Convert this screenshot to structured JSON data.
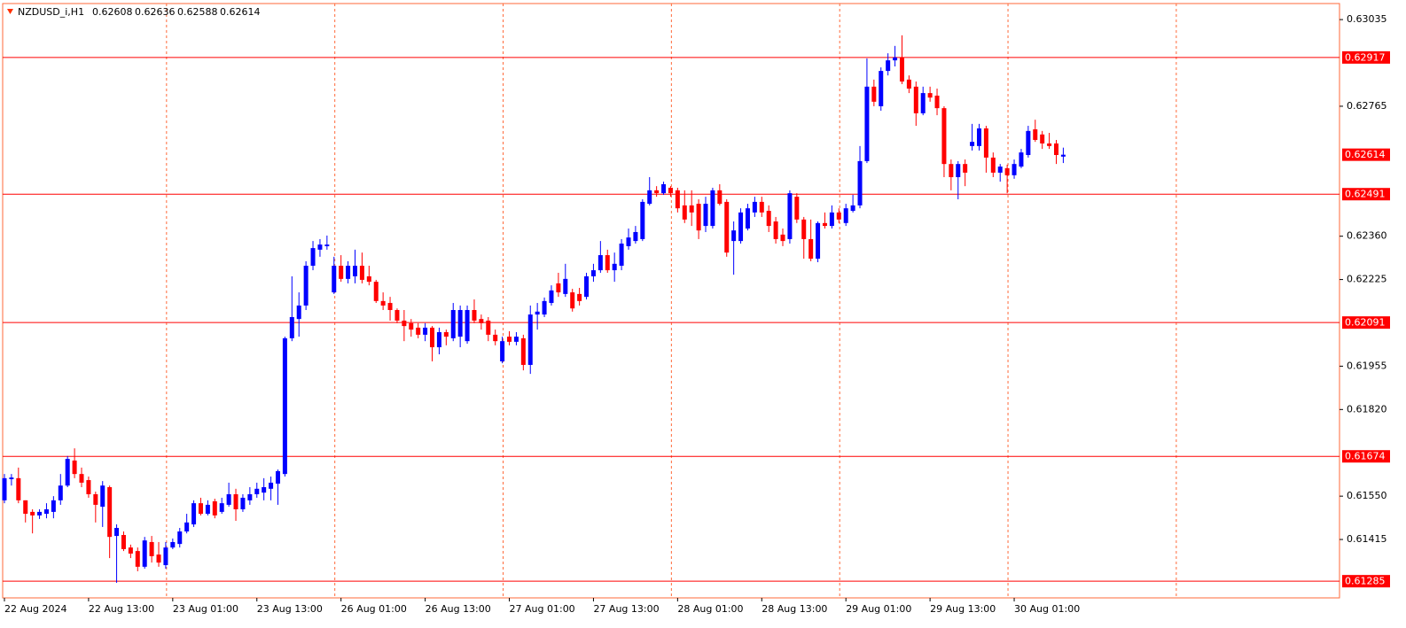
{
  "chart_data": {
    "type": "candlestick",
    "title": "NZDUSD_i,H1",
    "categories": [
      "22 Aug 2024",
      null,
      null,
      null,
      null,
      null,
      null,
      null,
      null,
      null,
      null,
      null,
      "22 Aug 13:00",
      null,
      null,
      null,
      null,
      null,
      null,
      null,
      null,
      null,
      null,
      null,
      "23 Aug 01:00",
      null,
      null,
      null,
      null,
      null,
      null,
      null,
      null,
      null,
      null,
      null,
      "23 Aug 13:00",
      null,
      null,
      null,
      null,
      null,
      null,
      null,
      null,
      null,
      null,
      null,
      "26 Aug 01:00",
      null,
      null,
      null,
      null,
      null,
      null,
      null,
      null,
      null,
      null,
      null,
      "26 Aug 13:00",
      null,
      null,
      null,
      null,
      null,
      null,
      null,
      null,
      null,
      null,
      null,
      "27 Aug 01:00",
      null,
      null,
      null,
      null,
      null,
      null,
      null,
      null,
      null,
      null,
      null,
      "27 Aug 13:00",
      null,
      null,
      null,
      null,
      null,
      null,
      null,
      null,
      null,
      null,
      null,
      "28 Aug 01:00",
      null,
      null,
      null,
      null,
      null,
      null,
      null,
      null,
      null,
      null,
      null,
      "28 Aug 13:00",
      null,
      null,
      null,
      null,
      null,
      null,
      null,
      null,
      null,
      null,
      null,
      "29 Aug 01:00",
      null,
      null,
      null,
      null,
      null,
      null,
      null,
      null,
      null,
      null,
      null,
      "29 Aug 13:00",
      null,
      null,
      null,
      null,
      null,
      null,
      null,
      null,
      null,
      null,
      null,
      "30 Aug 01:00",
      null,
      null,
      null,
      null,
      null,
      null,
      null
    ],
    "open": [
      0.61537,
      0.61603,
      0.61606,
      0.61537,
      0.61501,
      0.6149,
      0.61495,
      0.61501,
      0.61537,
      0.61583,
      0.61661,
      0.61619,
      0.616,
      0.61556,
      0.61517,
      0.61578,
      0.61426,
      0.61429,
      0.6139,
      0.61379,
      0.6133,
      0.61407,
      0.61368,
      0.61335,
      0.6139,
      0.61401,
      0.6144,
      0.61462,
      0.61528,
      0.61495,
      0.61534,
      0.61501,
      0.61523,
      0.61556,
      0.61509,
      0.61537,
      0.61556,
      0.61561,
      0.61573,
      0.61589,
      0.61619,
      0.62042,
      0.62102,
      0.62144,
      0.62268,
      0.62318,
      0.62329,
      0.62185,
      0.62268,
      0.62227,
      0.62235,
      0.62268,
      0.62235,
      0.62218,
      0.62158,
      0.62152,
      0.6213,
      0.62097,
      0.62089,
      0.62075,
      0.62053,
      0.62075,
      0.62014,
      0.62061,
      0.62042,
      0.62047,
      0.62033,
      0.6213,
      0.62102,
      0.62097,
      0.62053,
      0.6197,
      0.62047,
      0.62031,
      0.62042,
      0.61959,
      0.62116,
      0.62116,
      0.62152,
      0.62213,
      0.6218,
      0.62185,
      0.6218,
      0.62171,
      0.62235,
      0.62254,
      0.62301,
      0.62254,
      0.62268,
      0.62329,
      0.62345,
      0.62351,
      0.62461,
      0.62503,
      0.62494,
      0.62511,
      0.62503,
      0.62456,
      0.62456,
      0.62461,
      0.62392,
      0.62392,
      0.62503,
      0.62467,
      0.62345,
      0.62345,
      0.62384,
      0.62434,
      0.62467,
      0.62439,
      0.62406,
      0.62365,
      0.62351,
      0.62483,
      0.62412,
      0.62351,
      0.6229,
      0.62401,
      0.62392,
      0.62434,
      0.62401,
      0.62439,
      0.62456,
      0.62594,
      0.62826,
      0.62765,
      0.62875,
      0.62908,
      0.62917,
      0.62848,
      0.62826,
      0.62743,
      0.62806,
      0.62798,
      0.62759,
      0.62585,
      0.62544,
      0.62585,
      0.62641,
      0.62641,
      0.62696,
      0.62605,
      0.62558,
      0.62572,
      0.6255,
      0.62577,
      0.62613,
      0.62693,
      0.62677,
      0.62649,
      0.62649,
      0.62608
    ],
    "high": [
      0.61619,
      0.61619,
      0.61639,
      0.61537,
      0.61509,
      0.61509,
      0.61528,
      0.6155,
      0.61619,
      0.61675,
      0.61699,
      0.61639,
      0.61611,
      0.61564,
      0.61597,
      0.61583,
      0.61462,
      0.6144,
      0.61399,
      0.6139,
      0.61423,
      0.61426,
      0.61407,
      0.61407,
      0.61418,
      0.61451,
      0.61495,
      0.61537,
      0.61545,
      0.61537,
      0.61542,
      0.61545,
      0.61592,
      0.61573,
      0.61556,
      0.61578,
      0.61592,
      0.61606,
      0.61611,
      0.61633,
      0.62047,
      0.62235,
      0.62185,
      0.62282,
      0.62345,
      0.62351,
      0.62362,
      0.62296,
      0.62301,
      0.62282,
      0.62318,
      0.62309,
      0.62268,
      0.62224,
      0.62185,
      0.62171,
      0.62135,
      0.6213,
      0.62102,
      0.62089,
      0.62089,
      0.6208,
      0.62075,
      0.62069,
      0.62152,
      0.62144,
      0.62144,
      0.62163,
      0.62116,
      0.62108,
      0.62069,
      0.62047,
      0.62064,
      0.62061,
      0.62053,
      0.62144,
      0.62152,
      0.62169,
      0.62207,
      0.62246,
      0.62274,
      0.62196,
      0.62199,
      0.62246,
      0.62274,
      0.62345,
      0.62318,
      0.62309,
      0.62351,
      0.62384,
      0.62392,
      0.62475,
      0.62544,
      0.62516,
      0.6253,
      0.62516,
      0.62511,
      0.62503,
      0.62503,
      0.62475,
      0.62483,
      0.62511,
      0.62522,
      0.62475,
      0.62406,
      0.62447,
      0.62461,
      0.62483,
      0.62483,
      0.62456,
      0.6242,
      0.62384,
      0.62503,
      0.62494,
      0.6242,
      0.62412,
      0.62406,
      0.62434,
      0.62456,
      0.62447,
      0.62461,
      0.62489,
      0.62641,
      0.62914,
      0.62848,
      0.62886,
      0.6293,
      0.62953,
      0.62986,
      0.62861,
      0.62842,
      0.62826,
      0.62826,
      0.6282,
      0.62765,
      0.62599,
      0.62594,
      0.62599,
      0.6271,
      0.6271,
      0.62704,
      0.62621,
      0.62585,
      0.62583,
      0.62599,
      0.62632,
      0.62704,
      0.62723,
      0.62688,
      0.62682,
      0.6266,
      0.62636
    ],
    "low": [
      0.61528,
      0.61583,
      0.61528,
      0.61468,
      0.61434,
      0.61479,
      0.61481,
      0.61481,
      0.61523,
      0.61578,
      0.61606,
      0.61578,
      0.61545,
      0.61468,
      0.61454,
      0.61357,
      0.6128,
      0.61379,
      0.61357,
      0.61316,
      0.61324,
      0.61343,
      0.6133,
      0.61324,
      0.61385,
      0.6139,
      0.61434,
      0.61454,
      0.6149,
      0.6149,
      0.61481,
      0.61495,
      0.61517,
      0.61473,
      0.61501,
      0.61523,
      0.61545,
      0.61537,
      0.61537,
      0.61523,
      0.61611,
      0.62033,
      0.62047,
      0.6213,
      0.62254,
      0.62296,
      0.62318,
      0.6218,
      0.62218,
      0.62213,
      0.62213,
      0.62213,
      0.62207,
      0.62152,
      0.6213,
      0.62097,
      0.62089,
      0.62033,
      0.62047,
      0.62042,
      0.62033,
      0.6197,
      0.61992,
      0.6202,
      0.62033,
      0.62014,
      0.62025,
      0.62089,
      0.62069,
      0.62033,
      0.6202,
      0.61964,
      0.6202,
      0.6202,
      0.61942,
      0.61931,
      0.62069,
      0.62108,
      0.62144,
      0.62171,
      0.62171,
      0.62125,
      0.62144,
      0.62163,
      0.62218,
      0.62246,
      0.62246,
      0.62218,
      0.62254,
      0.62318,
      0.62337,
      0.62345,
      0.62456,
      0.62483,
      0.62489,
      0.62483,
      0.62434,
      0.62401,
      0.62392,
      0.62351,
      0.62373,
      0.62384,
      0.62456,
      0.62296,
      0.6224,
      0.62337,
      0.62378,
      0.6242,
      0.6242,
      0.62373,
      0.62337,
      0.62329,
      0.62337,
      0.62401,
      0.6229,
      0.62282,
      0.62279,
      0.62384,
      0.62384,
      0.62401,
      0.62392,
      0.62434,
      0.62447,
      0.62588,
      0.62765,
      0.62751,
      0.62861,
      0.62889,
      0.62834,
      0.62806,
      0.62704,
      0.62737,
      0.62779,
      0.62737,
      0.62544,
      0.62503,
      0.62475,
      0.62516,
      0.62627,
      0.62627,
      0.62558,
      0.62544,
      0.6253,
      0.62494,
      0.62539,
      0.62572,
      0.62605,
      0.62654,
      0.62632,
      0.62632,
      0.62585,
      0.62588
    ],
    "close": [
      0.61606,
      0.61608,
      0.61537,
      0.61495,
      0.6149,
      0.61501,
      0.61509,
      0.61537,
      0.61583,
      0.61666,
      0.61619,
      0.61592,
      0.61556,
      0.61523,
      0.61583,
      0.61423,
      0.61451,
      0.61385,
      0.61371,
      0.6133,
      0.61412,
      0.61363,
      0.61343,
      0.6139,
      0.61407,
      0.6144,
      0.61468,
      0.61528,
      0.61495,
      0.61523,
      0.6149,
      0.61528,
      0.61556,
      0.61509,
      0.61545,
      0.61556,
      0.61573,
      0.61578,
      0.61592,
      0.61628,
      0.62042,
      0.62108,
      0.62144,
      0.62268,
      0.62323,
      0.62334,
      0.62334,
      0.62268,
      0.62227,
      0.62268,
      0.62268,
      0.62224,
      0.62218,
      0.62158,
      0.62144,
      0.6213,
      0.62097,
      0.6208,
      0.62069,
      0.62053,
      0.62075,
      0.62014,
      0.62061,
      0.62047,
      0.6213,
      0.6213,
      0.6213,
      0.62097,
      0.62089,
      0.62053,
      0.62033,
      0.62033,
      0.62031,
      0.62047,
      0.61959,
      0.62116,
      0.62125,
      0.62158,
      0.62191,
      0.62185,
      0.62227,
      0.62135,
      0.62158,
      0.62235,
      0.62254,
      0.62301,
      0.62254,
      0.62274,
      0.62337,
      0.62356,
      0.62373,
      0.62467,
      0.62503,
      0.62494,
      0.62522,
      0.62494,
      0.62447,
      0.62412,
      0.62434,
      0.62378,
      0.62461,
      0.62503,
      0.62461,
      0.62309,
      0.62378,
      0.62434,
      0.62447,
      0.62467,
      0.62434,
      0.62392,
      0.62351,
      0.62345,
      0.62494,
      0.62412,
      0.62351,
      0.6229,
      0.62401,
      0.62392,
      0.62434,
      0.62412,
      0.62447,
      0.62456,
      0.62594,
      0.62826,
      0.62779,
      0.62875,
      0.62908,
      0.62917,
      0.62842,
      0.6282,
      0.62743,
      0.62806,
      0.62792,
      0.62759,
      0.62585,
      0.62544,
      0.62585,
      0.62558,
      0.62654,
      0.62696,
      0.62605,
      0.62558,
      0.62577,
      0.6255,
      0.62585,
      0.62621,
      0.62688,
      0.6266,
      0.62649,
      0.62641,
      0.62613,
      0.62614
    ],
    "up_color": "#0000ff",
    "down_color": "#ff0000",
    "level_color": "#ff0000",
    "grid_color": "#ff6a3a",
    "levels": [
      0.62917,
      0.62491,
      0.62091,
      0.61674,
      0.61285
    ],
    "ylim": [
      0.61233,
      0.63085
    ],
    "yticks": [
      0.63035,
      0.62765,
      {
        "value": 0.6236,
        "label": "0.62360"
      },
      0.62225,
      0.61955,
      {
        "value": 0.6182,
        "label": "0.61820"
      },
      {
        "value": 0.6155,
        "label": "0.61550"
      },
      0.61415
    ],
    "grid": true
  }
}
